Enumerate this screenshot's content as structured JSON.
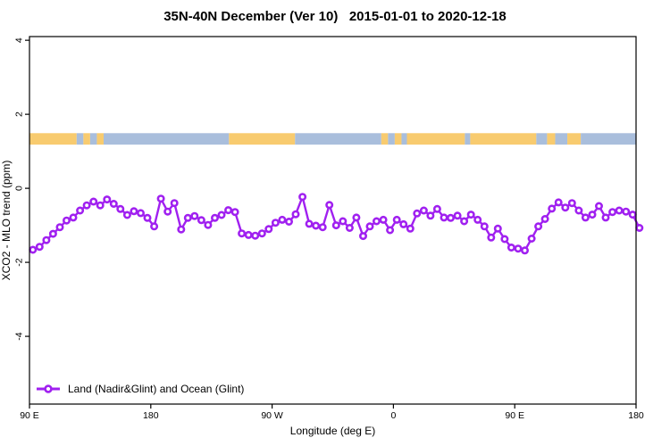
{
  "title": "35N-40N December (Ver 10)   2015-01-01 to 2020-12-18",
  "colors": {
    "series": "#A020F0",
    "land": "#F8CB6F",
    "ocean": "#A9BEDC",
    "axis": "#000000",
    "background": "#FFFFFF"
  },
  "legend": {
    "entries": [
      {
        "label": "Land (Nadir&Glint) and Ocean (Glint)",
        "marker": "open-circle-line",
        "color": "#A020F0"
      }
    ],
    "position": "bottom-left"
  },
  "chart_data": {
    "type": "line",
    "title": "35N-40N December (Ver 10)   2015-01-01 to 2020-12-18",
    "xlabel": "Longitude (deg E)",
    "ylabel": "XCO2 - MLO trend (ppm)",
    "xlim": [
      90,
      540
    ],
    "ylim": [
      -5.83,
      4.1
    ],
    "grid": false,
    "x_ticks": [
      {
        "value": 90,
        "label": "90 E"
      },
      {
        "value": 180,
        "label": "180"
      },
      {
        "value": 270,
        "label": "90 W"
      },
      {
        "value": 360,
        "label": "0"
      },
      {
        "value": 450,
        "label": "90 E"
      },
      {
        "value": 540,
        "label": "180"
      }
    ],
    "y_ticks": [
      {
        "value": -4,
        "label": "-4"
      },
      {
        "value": -2,
        "label": "-2"
      },
      {
        "value": 0,
        "label": "0"
      },
      {
        "value": 2,
        "label": "2"
      },
      {
        "value": 4,
        "label": "4"
      }
    ],
    "series": [
      {
        "name": "Land (Nadir&Glint) and Ocean (Glint)",
        "color": "#A020F0",
        "marker": "open-circle",
        "x_start": 92.5,
        "x_step": 5,
        "values": [
          -1.66,
          -1.58,
          -1.4,
          -1.23,
          -1.05,
          -0.87,
          -0.79,
          -0.6,
          -0.46,
          -0.36,
          -0.46,
          -0.3,
          -0.42,
          -0.56,
          -0.72,
          -0.62,
          -0.67,
          -0.8,
          -1.03,
          -0.28,
          -0.63,
          -0.4,
          -1.11,
          -0.8,
          -0.75,
          -0.86,
          -0.99,
          -0.8,
          -0.72,
          -0.59,
          -0.64,
          -1.22,
          -1.26,
          -1.28,
          -1.22,
          -1.1,
          -0.93,
          -0.85,
          -0.9,
          -0.7,
          -0.23,
          -0.96,
          -1.01,
          -1.05,
          -0.45,
          -1.0,
          -0.89,
          -1.07,
          -0.79,
          -1.29,
          -1.03,
          -0.89,
          -0.85,
          -1.13,
          -0.85,
          -0.97,
          -1.09,
          -0.68,
          -0.6,
          -0.74,
          -0.56,
          -0.79,
          -0.8,
          -0.74,
          -0.89,
          -0.71,
          -0.85,
          -1.03,
          -1.33,
          -1.09,
          -1.37,
          -1.6,
          -1.63,
          -1.68,
          -1.36,
          -1.03,
          -0.83,
          -0.55,
          -0.38,
          -0.52,
          -0.4,
          -0.6,
          -0.79,
          -0.71,
          -0.48,
          -0.79,
          -0.64,
          -0.6,
          -0.63,
          -0.71,
          -1.07
        ]
      }
    ],
    "land_ocean_strip": {
      "description": "land/ocean map band for 35N-40N latitude zone",
      "y_range": [
        1.18,
        1.49
      ],
      "land_color": "#F8CB6F",
      "ocean_color": "#A9BEDC",
      "segments": [
        {
          "from": 90,
          "to": 125,
          "type": "land"
        },
        {
          "from": 125,
          "to": 130,
          "type": "ocean"
        },
        {
          "from": 130,
          "to": 135,
          "type": "land"
        },
        {
          "from": 135,
          "to": 140,
          "type": "ocean"
        },
        {
          "from": 140,
          "to": 145,
          "type": "land"
        },
        {
          "from": 145,
          "to": 238,
          "type": "ocean"
        },
        {
          "from": 238,
          "to": 287,
          "type": "land"
        },
        {
          "from": 287,
          "to": 351,
          "type": "ocean"
        },
        {
          "from": 351,
          "to": 356,
          "type": "land"
        },
        {
          "from": 356,
          "to": 361,
          "type": "ocean"
        },
        {
          "from": 361,
          "to": 366,
          "type": "land"
        },
        {
          "from": 366,
          "to": 370,
          "type": "ocean"
        },
        {
          "from": 370,
          "to": 413,
          "type": "land"
        },
        {
          "from": 413,
          "to": 417,
          "type": "ocean"
        },
        {
          "from": 417,
          "to": 466,
          "type": "land"
        },
        {
          "from": 466,
          "to": 474,
          "type": "ocean"
        },
        {
          "from": 474,
          "to": 480,
          "type": "land"
        },
        {
          "from": 480,
          "to": 489,
          "type": "ocean"
        },
        {
          "from": 489,
          "to": 499,
          "type": "land"
        },
        {
          "from": 499,
          "to": 540,
          "type": "ocean"
        }
      ]
    }
  }
}
